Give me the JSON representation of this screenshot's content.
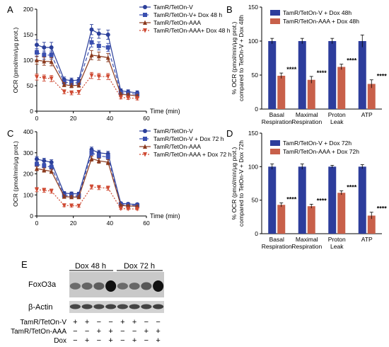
{
  "colors": {
    "blue": "#2b3f9a",
    "navy": "#3a4fb0",
    "brown": "#8b3a1e",
    "red": "#cf4a33",
    "bar_blue": "#2d3d9c",
    "bar_red": "#c8604a",
    "axis": "#000000"
  },
  "panel_letters": [
    "A",
    "B",
    "C",
    "D",
    "E"
  ],
  "chart_data": [
    {
      "panel": "A",
      "type": "line",
      "xlabel": "Time (min)",
      "ylabel": "OCR (pmol/min/μg prot.)",
      "xlim": [
        0,
        60
      ],
      "ylim": [
        0,
        200
      ],
      "xticks": [
        0,
        20,
        40,
        60
      ],
      "yticks": [
        0,
        50,
        100,
        150,
        200
      ],
      "legend_position": "top-right",
      "x": [
        0,
        4,
        8,
        15,
        19,
        23,
        30,
        34,
        39,
        46,
        50,
        55
      ],
      "series": [
        {
          "name": "TamR/TetOn-V",
          "color": "#2b3f9a",
          "marker": "circle",
          "dash": "solid",
          "values": [
            130,
            125,
            125,
            62,
            60,
            61,
            160,
            152,
            150,
            40,
            38,
            36
          ],
          "err": [
            10,
            10,
            10,
            5,
            5,
            5,
            10,
            9,
            9,
            4,
            4,
            4
          ]
        },
        {
          "name": "TamR/TetOn-V+ Dox 48 h",
          "color": "#3a4fb0",
          "marker": "square",
          "dash": "dash",
          "values": [
            115,
            110,
            110,
            57,
            55,
            56,
            135,
            128,
            125,
            36,
            35,
            33
          ],
          "err": [
            8,
            8,
            8,
            4,
            4,
            4,
            9,
            8,
            8,
            3,
            3,
            3
          ]
        },
        {
          "name": "TamR/TetOn-AAA",
          "color": "#8b3a1e",
          "marker": "triangle",
          "dash": "solid",
          "values": [
            100,
            98,
            97,
            52,
            50,
            51,
            110,
            108,
            105,
            33,
            32,
            30
          ],
          "err": [
            8,
            8,
            8,
            4,
            4,
            4,
            9,
            8,
            8,
            3,
            3,
            3
          ]
        },
        {
          "name": "TamR/TetOn-AAA+ Dox 48 h",
          "color": "#cf4a33",
          "marker": "triangle-down",
          "dash": "dot",
          "values": [
            67,
            65,
            64,
            38,
            36,
            37,
            70,
            68,
            68,
            27,
            26,
            25
          ],
          "err": [
            6,
            6,
            6,
            4,
            4,
            4,
            6,
            6,
            6,
            3,
            3,
            3
          ]
        }
      ]
    },
    {
      "panel": "B",
      "type": "bar",
      "ylabel": "% OCR (pmol/min/μg prot.) compared to TetOn-V + Dox 48h",
      "ylim": [
        0,
        150
      ],
      "yticks": [
        0,
        50,
        100,
        150
      ],
      "categories": [
        "Basal Respiration",
        "Maximal Respiration",
        "Proton Leak",
        "ATP"
      ],
      "series": [
        {
          "name": "TamR/TetOn-V + Dox 48h",
          "color": "#2d3d9c",
          "values": [
            100,
            100,
            100,
            100
          ],
          "err": [
            4,
            4,
            4,
            9
          ]
        },
        {
          "name": "TamR/TetOn-AAA + Dox 48h",
          "color": "#c8604a",
          "values": [
            49,
            43,
            62,
            37
          ],
          "err": [
            4,
            5,
            4,
            6
          ]
        }
      ],
      "annotations": [
        "****",
        "****",
        "****",
        "****"
      ]
    },
    {
      "panel": "C",
      "type": "line",
      "xlabel": "Time (min)",
      "ylabel": "OCR (pmol/min/μg prot.)",
      "xlim": [
        0,
        60
      ],
      "ylim": [
        0,
        400
      ],
      "xticks": [
        0,
        20,
        40,
        60
      ],
      "yticks": [
        0,
        100,
        200,
        300,
        400
      ],
      "legend_position": "top-right",
      "x": [
        0,
        4,
        8,
        15,
        19,
        23,
        30,
        34,
        39,
        46,
        50,
        55
      ],
      "series": [
        {
          "name": "TamR/TetOn-V",
          "color": "#2b3f9a",
          "marker": "circle",
          "dash": "solid",
          "values": [
            270,
            262,
            255,
            108,
            106,
            105,
            315,
            300,
            295,
            60,
            57,
            55
          ],
          "err": [
            12,
            12,
            12,
            8,
            8,
            8,
            12,
            12,
            12,
            6,
            6,
            6
          ]
        },
        {
          "name": "TamR/TetOn-V + Dox 72 h",
          "color": "#3a4fb0",
          "marker": "square",
          "dash": "dash",
          "values": [
            245,
            238,
            232,
            98,
            96,
            95,
            300,
            285,
            280,
            55,
            52,
            50
          ],
          "err": [
            10,
            10,
            10,
            7,
            7,
            7,
            12,
            12,
            12,
            5,
            5,
            5
          ]
        },
        {
          "name": "TamR/TetOn-AAA",
          "color": "#8b3a1e",
          "marker": "triangle",
          "dash": "solid",
          "values": [
            225,
            218,
            212,
            92,
            90,
            90,
            272,
            262,
            255,
            50,
            48,
            46
          ],
          "err": [
            10,
            10,
            10,
            7,
            7,
            7,
            12,
            12,
            12,
            5,
            5,
            5
          ]
        },
        {
          "name": "TamR/TetOn-AAA + Dox 72 h",
          "color": "#cf4a33",
          "marker": "triangle-down",
          "dash": "dot",
          "values": [
            125,
            122,
            118,
            50,
            49,
            48,
            138,
            135,
            132,
            35,
            34,
            33
          ],
          "err": [
            10,
            10,
            10,
            6,
            6,
            6,
            10,
            10,
            10,
            4,
            4,
            4
          ]
        }
      ]
    },
    {
      "panel": "D",
      "type": "bar",
      "ylabel": "% OCR (pmol/min/μg prot.) compared to TetOn-V + Dox 72h",
      "ylim": [
        0,
        150
      ],
      "yticks": [
        0,
        50,
        100,
        150
      ],
      "categories": [
        "Basal Respiration",
        "Maximal Respiration",
        "Proton Leak",
        "ATP"
      ],
      "series": [
        {
          "name": "TamR/TetOn-V + Dox 72h",
          "color": "#2d3d9c",
          "values": [
            100,
            100,
            100,
            100
          ],
          "err": [
            4,
            4,
            2,
            3
          ]
        },
        {
          "name": "TamR/TetOn-AAA + Dox 72h",
          "color": "#c8604a",
          "values": [
            43,
            41,
            61,
            27
          ],
          "err": [
            3,
            3,
            3,
            5
          ]
        }
      ],
      "annotations": [
        "****",
        "****",
        "****",
        "****"
      ]
    }
  ],
  "blot": {
    "group_labels": [
      "Dox 48 h",
      "Dox 72 h"
    ],
    "band_labels": [
      "FoxO3a",
      "β-Actin"
    ],
    "row_labels": [
      "TamR/TetOn-V",
      "TamR/TetOn-AAA",
      "Dox"
    ],
    "lanes": [
      {
        "v": "+",
        "aaa": "−",
        "dox": "−",
        "foxo": 0.35,
        "actin": 0.7
      },
      {
        "v": "+",
        "aaa": "−",
        "dox": "+",
        "foxo": 0.4,
        "actin": 0.72
      },
      {
        "v": "−",
        "aaa": "+",
        "dox": "−",
        "foxo": 0.45,
        "actin": 0.7
      },
      {
        "v": "−",
        "aaa": "+",
        "dox": "+",
        "foxo": 1.0,
        "actin": 0.75
      },
      {
        "v": "+",
        "aaa": "−",
        "dox": "−",
        "foxo": 0.35,
        "actin": 0.7
      },
      {
        "v": "+",
        "aaa": "−",
        "dox": "+",
        "foxo": 0.38,
        "actin": 0.72
      },
      {
        "v": "−",
        "aaa": "+",
        "dox": "−",
        "foxo": 0.5,
        "actin": 0.74
      },
      {
        "v": "−",
        "aaa": "+",
        "dox": "+",
        "foxo": 1.0,
        "actin": 0.78
      }
    ]
  }
}
